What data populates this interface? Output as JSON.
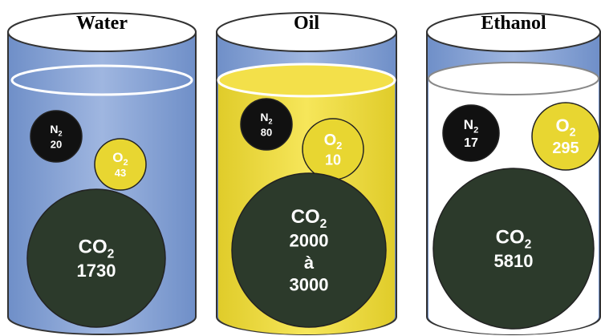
{
  "containers": [
    {
      "title": "Water",
      "gases": [
        {
          "formula": "N",
          "subscript": "2",
          "value_lines": [
            20
          ]
        },
        {
          "formula": "O",
          "subscript": "2",
          "value_lines": [
            43
          ]
        },
        {
          "formula": "CO",
          "subscript": "2",
          "value_lines": [
            1730
          ]
        }
      ]
    },
    {
      "title": "Oil",
      "gases": [
        {
          "formula": "N",
          "subscript": "2",
          "value_lines": [
            80
          ]
        },
        {
          "formula": "O",
          "subscript": "2",
          "value_lines": [
            10
          ]
        },
        {
          "formula": "CO",
          "subscript": "2",
          "value_lines": [
            2000,
            "à",
            3000
          ]
        }
      ]
    },
    {
      "title": "Ethanol",
      "gases": [
        {
          "formula": "N",
          "subscript": "2",
          "value_lines": [
            17
          ]
        },
        {
          "formula": "O",
          "subscript": "2",
          "value_lines": [
            295
          ]
        },
        {
          "formula": "CO",
          "subscript": "2",
          "value_lines": [
            5810
          ]
        }
      ]
    }
  ]
}
